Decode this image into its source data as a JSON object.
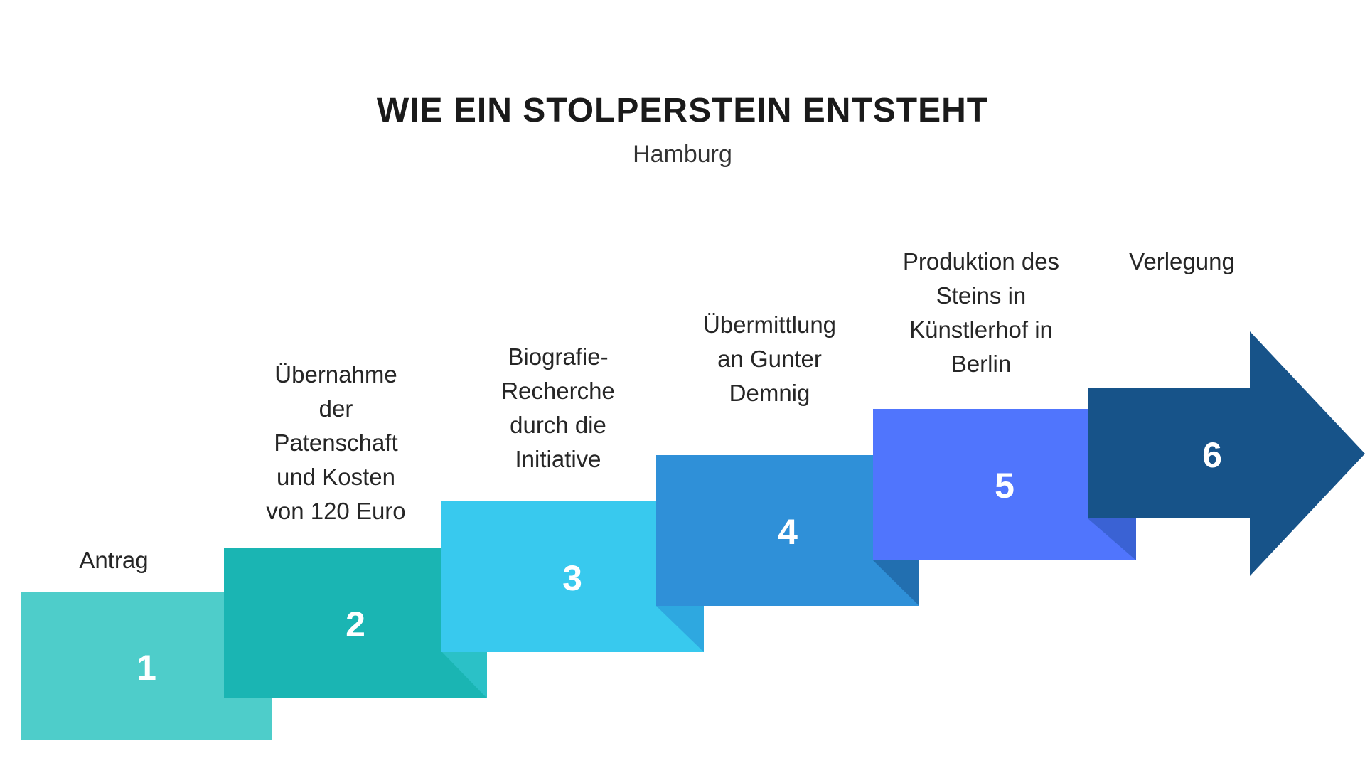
{
  "title": "WIE EIN STOLPERSTEIN ENTSTEHT",
  "subtitle": "Hamburg",
  "steps": [
    {
      "number": "1",
      "label": "Antrag",
      "color": "#4ECDCA",
      "shadow": "#3DB9B6"
    },
    {
      "number": "2",
      "label": "Übernahme\nder\nPatenschaft\nund Kosten\nvon 120 Euro",
      "color": "#1AB5B3",
      "shadow": "#2BC1C7"
    },
    {
      "number": "3",
      "label": "Biografie-\nRecherche\ndurch die\nInitiative",
      "color": "#38C9EE",
      "shadow": "#2EA8E0"
    },
    {
      "number": "4",
      "label": "Übermittlung\nan Gunter\nDemnig",
      "color": "#2F90D8",
      "shadow": "#226FB0"
    },
    {
      "number": "5",
      "label": "Produktion des\nSteins in\nKünstlerhof in\nBerlin",
      "color": "#5075FD",
      "shadow": "#3A62D4"
    },
    {
      "number": "6",
      "label": "Verlegung",
      "color": "#175389",
      "shadow": "#175389"
    }
  ]
}
